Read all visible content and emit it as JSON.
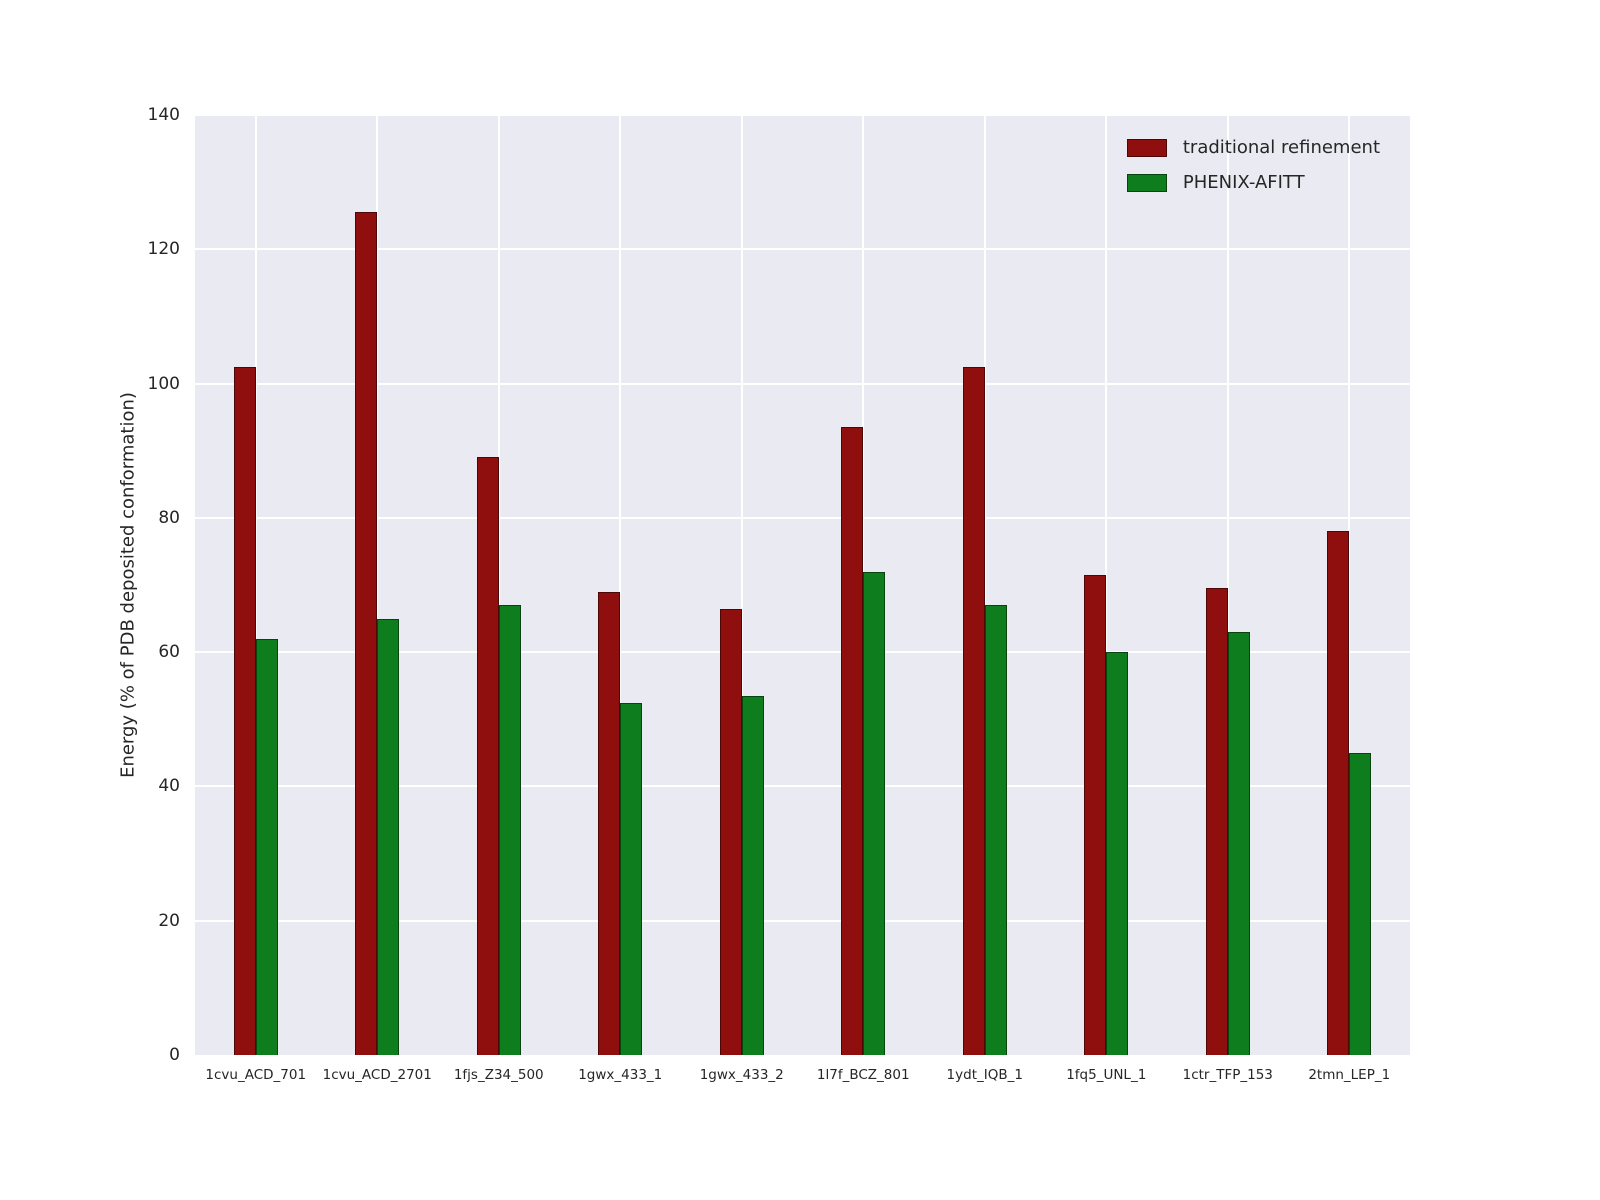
{
  "chart_data": {
    "type": "bar",
    "categories": [
      "1cvu_ACD_701",
      "1cvu_ACD_2701",
      "1fjs_Z34_500",
      "1gwx_433_1",
      "1gwx_433_2",
      "1l7f_BCZ_801",
      "1ydt_IQB_1",
      "1fq5_UNL_1",
      "1ctr_TFP_153",
      "2tmn_LEP_1"
    ],
    "series": [
      {
        "name": "traditional refinement",
        "color": "#8f0e0e",
        "values": [
          102.5,
          125.5,
          89,
          69,
          66.5,
          93.5,
          102.5,
          71.5,
          69.5,
          78
        ]
      },
      {
        "name": "PHENIX-AFITT",
        "color": "#0e7d1e",
        "values": [
          62,
          65,
          67,
          52.5,
          53.5,
          72,
          67,
          60,
          63,
          45
        ]
      }
    ],
    "title": "",
    "xlabel": "",
    "ylabel": "Energy (% of PDB deposited conformation)",
    "ylim": [
      0,
      140
    ],
    "yticks": [
      0,
      20,
      40,
      60,
      80,
      100,
      120,
      140
    ],
    "grid": true,
    "legend_position": "upper right"
  }
}
